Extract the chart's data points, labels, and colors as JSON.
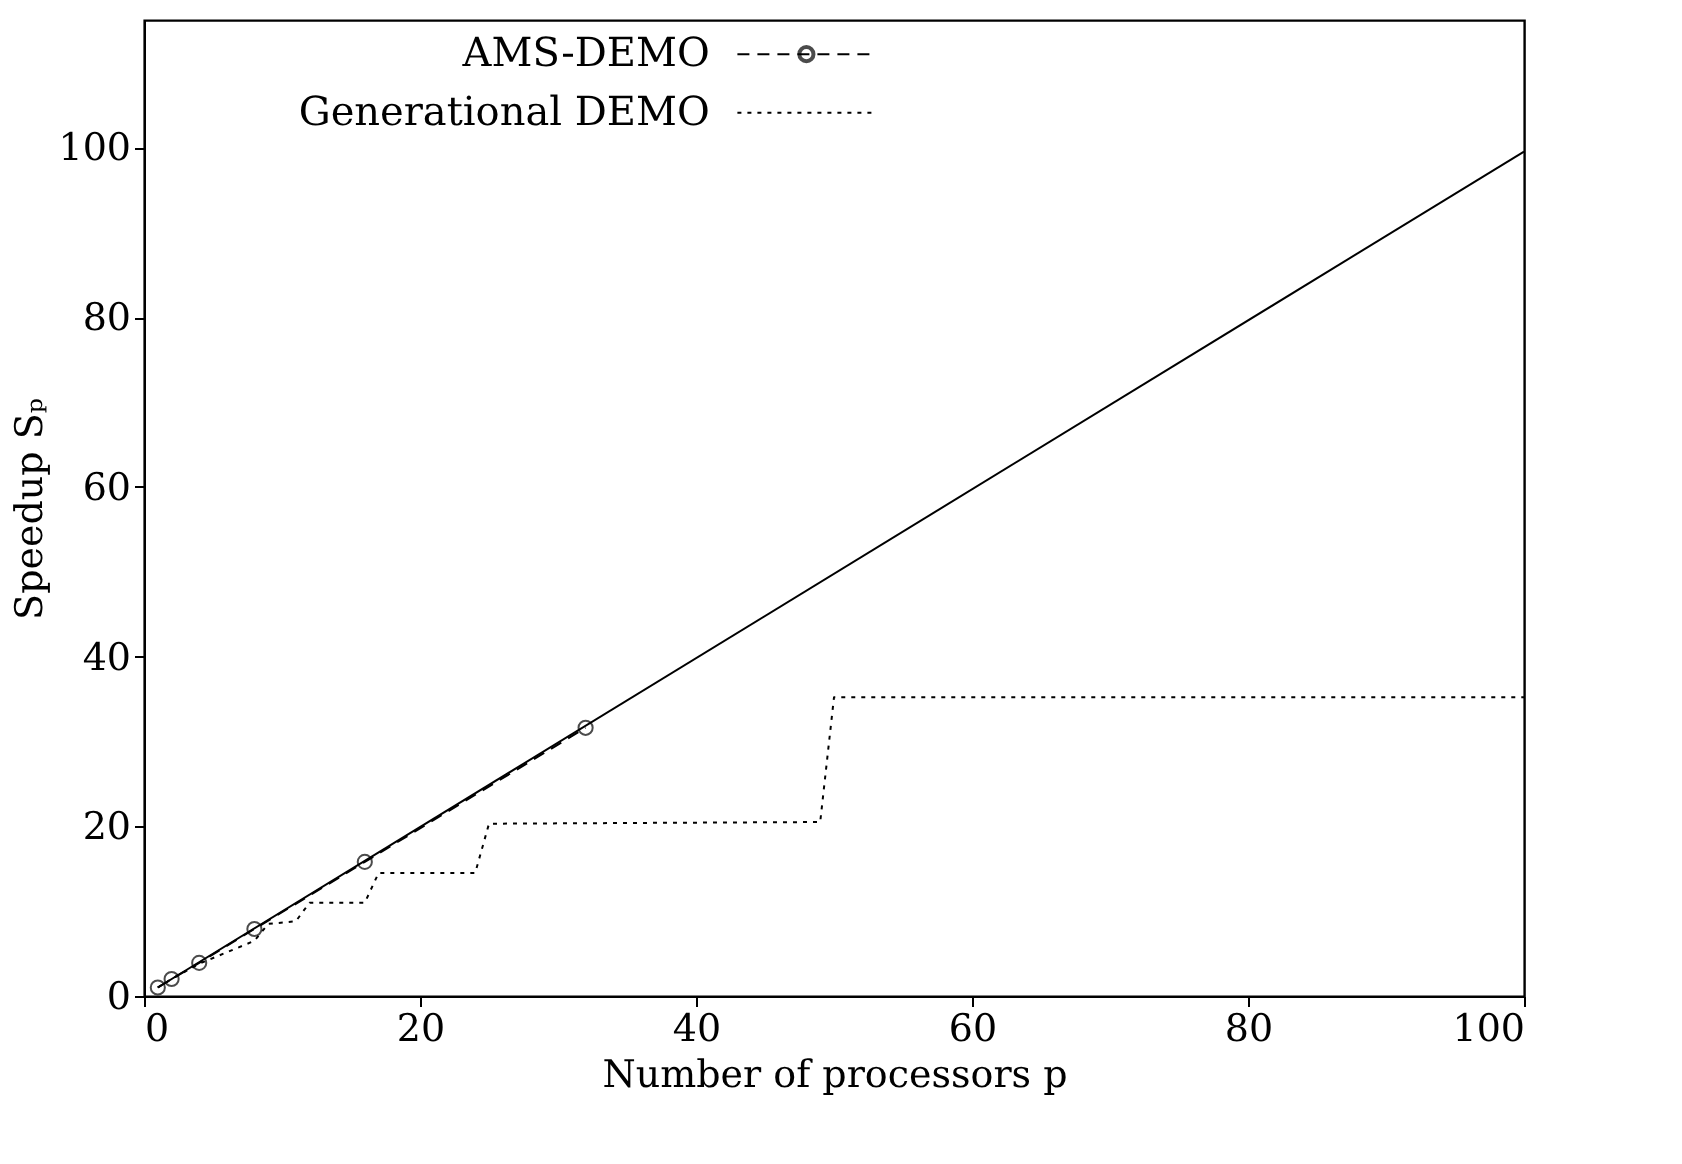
{
  "chart_data": {
    "type": "line",
    "xlabel": "Number of processors p",
    "ylabel": "Speedup Sₚ",
    "xlim": [
      0,
      100
    ],
    "ylim": [
      0,
      115
    ],
    "xticks": [
      0,
      20,
      40,
      60,
      80,
      100
    ],
    "yticks": [
      0,
      20,
      40,
      60,
      80,
      100
    ],
    "grid": false,
    "legend": "top",
    "series": [
      {
        "color": "#000000",
        "line_style": "solid",
        "x": [
          1,
          100
        ],
        "values": [
          1,
          99.5
        ]
      },
      {
        "name": "AMS-DEMO",
        "color": "#000000",
        "line_style": "dashed",
        "marker": "circle",
        "x": [
          1,
          2,
          4,
          8,
          16,
          32
        ],
        "values": [
          1,
          2,
          3.9,
          7.9,
          15.8,
          31.6
        ]
      },
      {
        "name": "Generational DEMO",
        "color": "#000000",
        "line_style": "dotted",
        "marker": "none",
        "x": [
          1,
          2,
          4,
          8,
          9,
          11,
          12,
          16,
          17,
          24,
          25,
          49,
          50,
          100
        ],
        "values": [
          1,
          2,
          3.8,
          6.5,
          8.5,
          8.8,
          11,
          11,
          14.5,
          14.5,
          20.3,
          20.5,
          35.2,
          35.2
        ]
      }
    ]
  }
}
